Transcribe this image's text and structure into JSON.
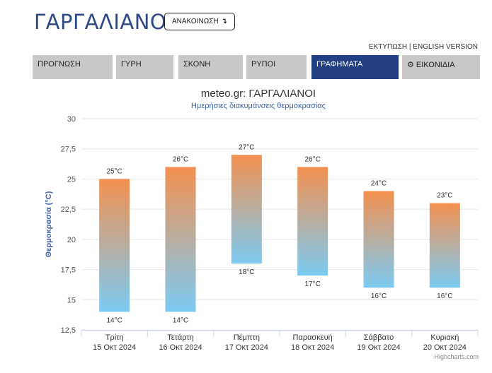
{
  "header": {
    "title": "ΓΑΡΓΑΛΙΑΝΟΙ",
    "announce_label": "ΑΝΑΚΟΙΝΩΣΗ",
    "announce_icon": "↴",
    "print_link": "ΕΚΤΥΠΩΣΗ",
    "separator": " | ",
    "english_link": "ENGLISH VERSION"
  },
  "tabs": [
    {
      "label": "ΠΡΟΓΝΩΣΗ",
      "active": false
    },
    {
      "label": "ΓΥΡΗ",
      "active": false
    },
    {
      "label": "ΣΚΟΝΗ",
      "active": false
    },
    {
      "label": "ΡΥΠΟΙ",
      "active": false
    },
    {
      "label": "ΓΡΑΦΗΜΑΤΑ",
      "active": true
    },
    {
      "label": "ΕΙΚΟΝΙΔΙΑ",
      "active": false,
      "icon": "gear-icon"
    }
  ],
  "chart_data": {
    "type": "columnrange",
    "title": "meteo.gr: ΓΑΡΓΑΛΙΑΝΟΙ",
    "subtitle": "Ημερήσιες διακυμάνσεις θερμοκρασίας",
    "ylabel": "Θερμοκρασία (°C)",
    "ylim": [
      12.5,
      30
    ],
    "yticks": [
      "12,5",
      "15",
      "17,5",
      "20",
      "22,5",
      "25",
      "27,5",
      "30"
    ],
    "categories": [
      {
        "day": "Τρίτη",
        "date": "15 Οκτ 2024"
      },
      {
        "day": "Τετάρτη",
        "date": "16 Οκτ 2024"
      },
      {
        "day": "Πέμπτη",
        "date": "17 Οκτ 2024"
      },
      {
        "day": "Παρασκευή",
        "date": "18 Οκτ 2024"
      },
      {
        "day": "Σάββατο",
        "date": "19 Οκτ 2024"
      },
      {
        "day": "Κυριακή",
        "date": "20 Οκτ 2024"
      }
    ],
    "min": [
      14,
      14,
      18,
      17,
      16,
      16
    ],
    "max": [
      25,
      26,
      27,
      26,
      24,
      23
    ],
    "unit": "°C",
    "colors": {
      "top": "#f3904f",
      "bottom": "#7ccbf3",
      "title": "#333333",
      "subtitle": "#3f63a8",
      "axis_title": "#3f63a8"
    }
  },
  "credits": "Highcharts.com"
}
